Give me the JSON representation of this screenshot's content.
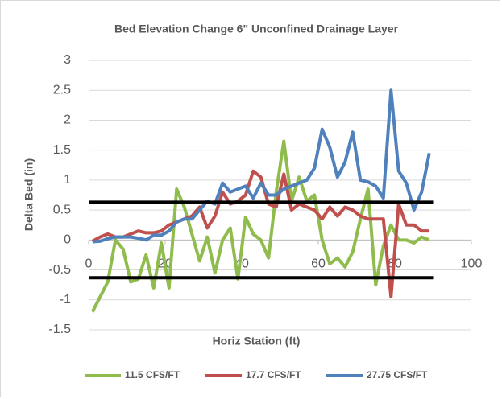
{
  "chart_data": {
    "type": "line",
    "title": "Bed Elevation Change 6\" Unconfined Drainage Layer",
    "xlabel": "Horiz Station (ft)",
    "ylabel": "Delta Bed (in)",
    "x": [
      1,
      3,
      5,
      7,
      9,
      11,
      13,
      15,
      17,
      19,
      21,
      23,
      25,
      27,
      29,
      31,
      33,
      35,
      37,
      39,
      41,
      43,
      45,
      47,
      49,
      51,
      53,
      55,
      57,
      59,
      61,
      63,
      65,
      67,
      69,
      71,
      73,
      75,
      77,
      79,
      81,
      83,
      85,
      87,
      89
    ],
    "series": [
      {
        "name": "11.5 CFS/FT",
        "color": "#8fbc4c",
        "values": [
          -1.2,
          -0.95,
          -0.7,
          0,
          -0.15,
          -0.7,
          -0.65,
          -0.25,
          -0.8,
          -0.05,
          -0.8,
          0.85,
          0.55,
          0.1,
          -0.35,
          0.05,
          -0.55,
          0,
          0.2,
          -0.65,
          0.38,
          0.1,
          0,
          -0.3,
          0.8,
          1.65,
          0.65,
          1.05,
          0.65,
          0.75,
          0,
          -0.4,
          -0.3,
          -0.45,
          -0.2,
          0.35,
          0.85,
          -0.75,
          -0.1,
          0.25,
          0,
          0,
          -0.05,
          0.05,
          0
        ]
      },
      {
        "name": "17.7 CFS/FT",
        "color": "#c0504d",
        "values": [
          -0.02,
          0.05,
          0.1,
          0.05,
          0.05,
          0.1,
          0.15,
          0.12,
          0.12,
          0.15,
          0.25,
          0.3,
          0.35,
          0.4,
          0.55,
          0.2,
          0.4,
          0.8,
          0.6,
          0.65,
          0.75,
          1.15,
          1.05,
          0.6,
          0.55,
          1.1,
          0.5,
          0.6,
          0.55,
          0.5,
          0.35,
          0.55,
          0.4,
          0.55,
          0.5,
          0.4,
          0.35,
          0.35,
          0.35,
          -0.95,
          0.6,
          0.25,
          0.25,
          0.15,
          0.15
        ]
      },
      {
        "name": "27.75 CFS/FT",
        "color": "#4f81bd",
        "values": [
          -0.03,
          -0.02,
          0.02,
          0.05,
          0.05,
          0.05,
          0.03,
          0,
          0.08,
          0.08,
          0.15,
          0.3,
          0.35,
          0.35,
          0.5,
          0.65,
          0.6,
          0.95,
          0.8,
          0.85,
          0.9,
          0.7,
          0.95,
          0.75,
          0.75,
          0.85,
          0.9,
          0.95,
          1,
          1.2,
          1.85,
          1.55,
          1.05,
          1.3,
          1.8,
          1,
          0.97,
          0.9,
          0.7,
          2.5,
          1.15,
          0.95,
          0.5,
          0.8,
          1.45
        ]
      }
    ],
    "hlines": [
      {
        "y": 0.63,
        "x": [
          0,
          90
        ]
      },
      {
        "y": -0.63,
        "x": [
          0,
          90
        ]
      }
    ],
    "xlim": [
      0,
      100
    ],
    "xticks": [
      0,
      20,
      40,
      60,
      80,
      100
    ],
    "ylim": [
      -1.5,
      3
    ],
    "yticks": [
      -1.5,
      -1,
      -0.5,
      0,
      0.5,
      1,
      1.5,
      2,
      2.5,
      3
    ],
    "grid": true,
    "legend": "bottom"
  }
}
